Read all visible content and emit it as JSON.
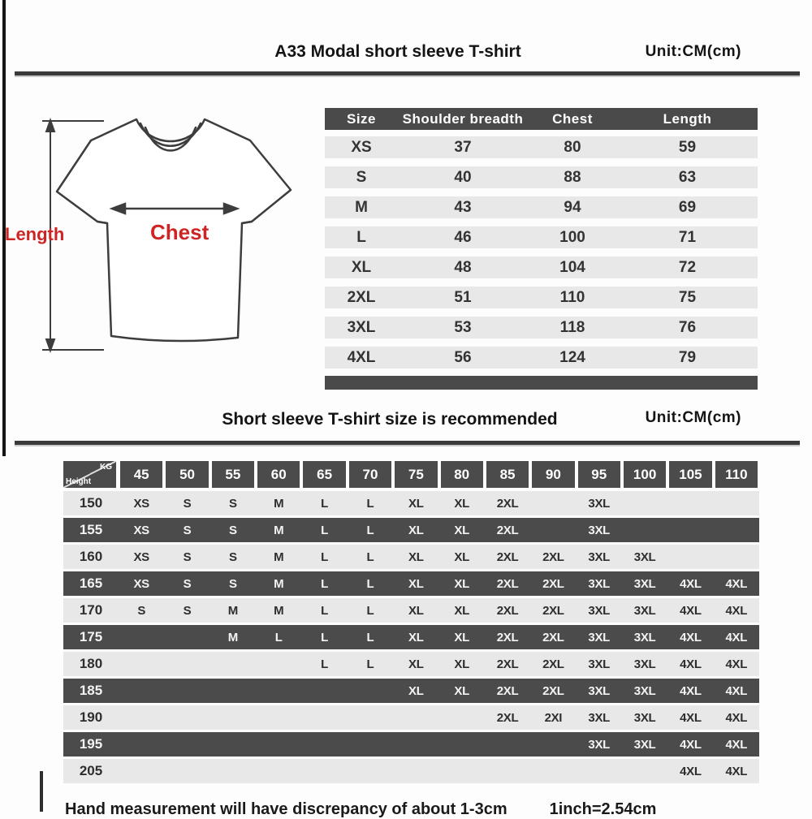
{
  "section1": {
    "title": "A33 Modal short sleeve T-shirt",
    "unit": "Unit:CM(cm)",
    "diagram": {
      "length_label": "Length",
      "chest_label": "Chest"
    },
    "size_table": {
      "headers": [
        "Size",
        "Shoulder breadth",
        "Chest",
        "Length"
      ],
      "rows": [
        [
          "XS",
          "37",
          "80",
          "59"
        ],
        [
          "S",
          "40",
          "88",
          "63"
        ],
        [
          "M",
          "43",
          "94",
          "69"
        ],
        [
          "L",
          "46",
          "100",
          "71"
        ],
        [
          "XL",
          "48",
          "104",
          "72"
        ],
        [
          "2XL",
          "51",
          "110",
          "75"
        ],
        [
          "3XL",
          "53",
          "118",
          "76"
        ],
        [
          "4XL",
          "56",
          "124",
          "79"
        ]
      ]
    }
  },
  "section2": {
    "title": "Short sleeve T-shirt size is recommended",
    "unit": "Unit:CM(cm)",
    "matrix": {
      "corner_top_right": "KG",
      "corner_bottom_left": "Height",
      "weights": [
        "45",
        "50",
        "55",
        "60",
        "65",
        "70",
        "75",
        "80",
        "85",
        "90",
        "95",
        "100",
        "105",
        "110"
      ],
      "rows": [
        {
          "height": "150",
          "cells": [
            "XS",
            "S",
            "S",
            "M",
            "L",
            "L",
            "XL",
            "XL",
            "2XL",
            "",
            "3XL",
            "",
            "",
            ""
          ]
        },
        {
          "height": "155",
          "cells": [
            "XS",
            "S",
            "S",
            "M",
            "L",
            "L",
            "XL",
            "XL",
            "2XL",
            "",
            "3XL",
            "",
            "",
            ""
          ]
        },
        {
          "height": "160",
          "cells": [
            "XS",
            "S",
            "S",
            "M",
            "L",
            "L",
            "XL",
            "XL",
            "2XL",
            "2XL",
            "3XL",
            "3XL",
            "",
            ""
          ]
        },
        {
          "height": "165",
          "cells": [
            "XS",
            "S",
            "S",
            "M",
            "L",
            "L",
            "XL",
            "XL",
            "2XL",
            "2XL",
            "3XL",
            "3XL",
            "4XL",
            "4XL"
          ]
        },
        {
          "height": "170",
          "cells": [
            "S",
            "S",
            "M",
            "M",
            "L",
            "L",
            "XL",
            "XL",
            "2XL",
            "2XL",
            "3XL",
            "3XL",
            "4XL",
            "4XL"
          ]
        },
        {
          "height": "175",
          "cells": [
            "",
            "",
            "M",
            "L",
            "L",
            "L",
            "XL",
            "XL",
            "2XL",
            "2XL",
            "3XL",
            "3XL",
            "4XL",
            "4XL"
          ]
        },
        {
          "height": "180",
          "cells": [
            "",
            "",
            "",
            "",
            "L",
            "L",
            "XL",
            "XL",
            "2XL",
            "2XL",
            "3XL",
            "3XL",
            "4XL",
            "4XL"
          ]
        },
        {
          "height": "185",
          "cells": [
            "",
            "",
            "",
            "",
            "",
            "",
            "XL",
            "XL",
            "2XL",
            "2XL",
            "3XL",
            "3XL",
            "4XL",
            "4XL"
          ]
        },
        {
          "height": "190",
          "cells": [
            "",
            "",
            "",
            "",
            "",
            "",
            "",
            "",
            "2XL",
            "2XI",
            "3XL",
            "3XL",
            "4XL",
            "4XL"
          ]
        },
        {
          "height": "195",
          "cells": [
            "",
            "",
            "",
            "",
            "",
            "",
            "",
            "",
            "",
            "",
            "3XL",
            "3XL",
            "4XL",
            "4XL"
          ]
        },
        {
          "height": "205",
          "cells": [
            "",
            "",
            "",
            "",
            "",
            "",
            "",
            "",
            "",
            "",
            "",
            "",
            "4XL",
            "4XL"
          ]
        }
      ]
    }
  },
  "footer": {
    "note_measure": "Hand measurement will have discrepancy of about  1-3cm",
    "note_inch": "1inch=2.54cm"
  }
}
